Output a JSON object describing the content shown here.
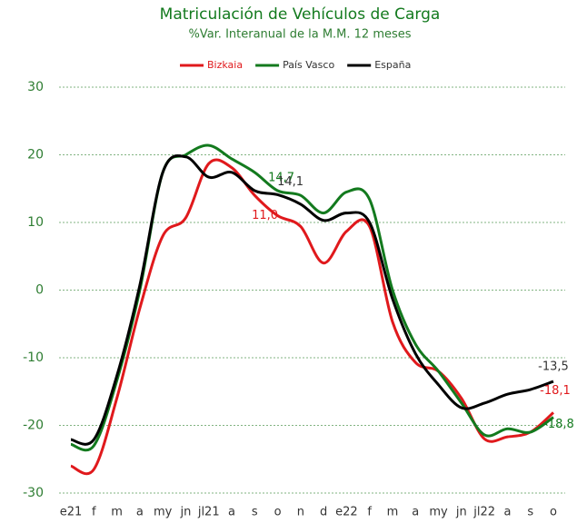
{
  "chart_data": {
    "type": "line",
    "title": "Matriculación de Vehículos de Carga",
    "subtitle": "%Var. Interanual de la M.M. 12 meses",
    "categories": [
      "e21",
      "f",
      "m",
      "a",
      "my",
      "jn",
      "jl21",
      "a",
      "s",
      "o",
      "n",
      "d",
      "e22",
      "f",
      "m",
      "a",
      "my",
      "jn",
      "jl22",
      "a",
      "s",
      "o"
    ],
    "series": [
      {
        "name": "Bizkaia",
        "color": "#e0191c",
        "values": [
          -26,
          -26.5,
          -16,
          -2.7,
          8,
          10.7,
          18.7,
          18.1,
          14,
          11.0,
          9.4,
          4,
          8.7,
          9.4,
          -4.7,
          -10.7,
          -12,
          -16,
          -22,
          -21.7,
          -21,
          -18.1
        ],
        "value_labels": [
          null,
          null,
          null,
          null,
          null,
          null,
          null,
          null,
          null,
          "11,0",
          null,
          null,
          null,
          null,
          null,
          null,
          null,
          null,
          null,
          null,
          null,
          "-18,1"
        ]
      },
      {
        "name": "País Vasco",
        "color": "#137a1e",
        "values": [
          -22.8,
          -23,
          -13.4,
          0,
          17.4,
          20,
          21.4,
          19.4,
          17.4,
          14.7,
          14,
          11.4,
          14.5,
          13.4,
          0,
          -8,
          -12,
          -16.7,
          -21.4,
          -20.5,
          -21,
          -18.8
        ],
        "value_labels": [
          null,
          null,
          null,
          null,
          null,
          null,
          null,
          null,
          null,
          "14,7",
          null,
          null,
          null,
          null,
          null,
          null,
          null,
          null,
          null,
          null,
          null,
          "-18,8"
        ]
      },
      {
        "name": "España",
        "color": "#000000",
        "values": [
          -22.1,
          -22.1,
          -12.7,
          0.7,
          17.4,
          19.7,
          16.7,
          17.4,
          14.7,
          14.1,
          12.7,
          10.3,
          11.4,
          10,
          -1.3,
          -9.4,
          -14,
          -17.4,
          -16.7,
          -15.4,
          -14.7,
          -13.5
        ],
        "value_labels": [
          null,
          null,
          null,
          null,
          null,
          null,
          null,
          null,
          null,
          "14,1",
          null,
          null,
          null,
          null,
          null,
          null,
          null,
          null,
          null,
          null,
          null,
          "-13,5"
        ]
      }
    ],
    "ylim": [
      -30,
      30
    ],
    "yticks": [
      -30,
      -20,
      -10,
      0,
      10,
      20,
      30
    ],
    "grid": true,
    "legend": "top"
  }
}
